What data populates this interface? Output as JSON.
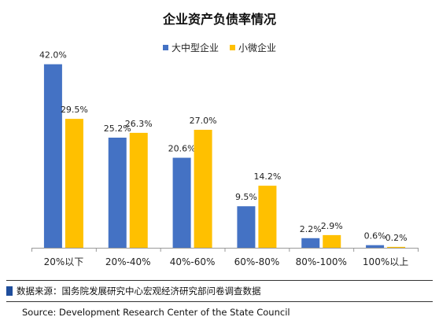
{
  "chart_data": {
    "type": "bar",
    "title": "企业资产负债率情况",
    "categories": [
      "20%以下",
      "20%-40%",
      "40%-60%",
      "60%-80%",
      "80%-100%",
      "100%以上"
    ],
    "series": [
      {
        "name": "大中型企业",
        "values": [
          42.0,
          25.2,
          20.6,
          9.5,
          2.2,
          0.6
        ],
        "color": "#4472c4"
      },
      {
        "name": "小微企业",
        "values": [
          29.5,
          26.3,
          27.0,
          14.2,
          2.9,
          0.2
        ],
        "color": "#ffc000"
      }
    ],
    "value_suffix": "%",
    "ylim": [
      0,
      45
    ],
    "legend_position": "top-center",
    "grid": false,
    "data_labels": true
  },
  "footer": {
    "source_cn": "数据来源：国务院发展研究中心宏观经济研究部问卷调查数据",
    "source_en": "Source: Development Research Center of the State Council",
    "marker_color": "#1f4e9c"
  }
}
